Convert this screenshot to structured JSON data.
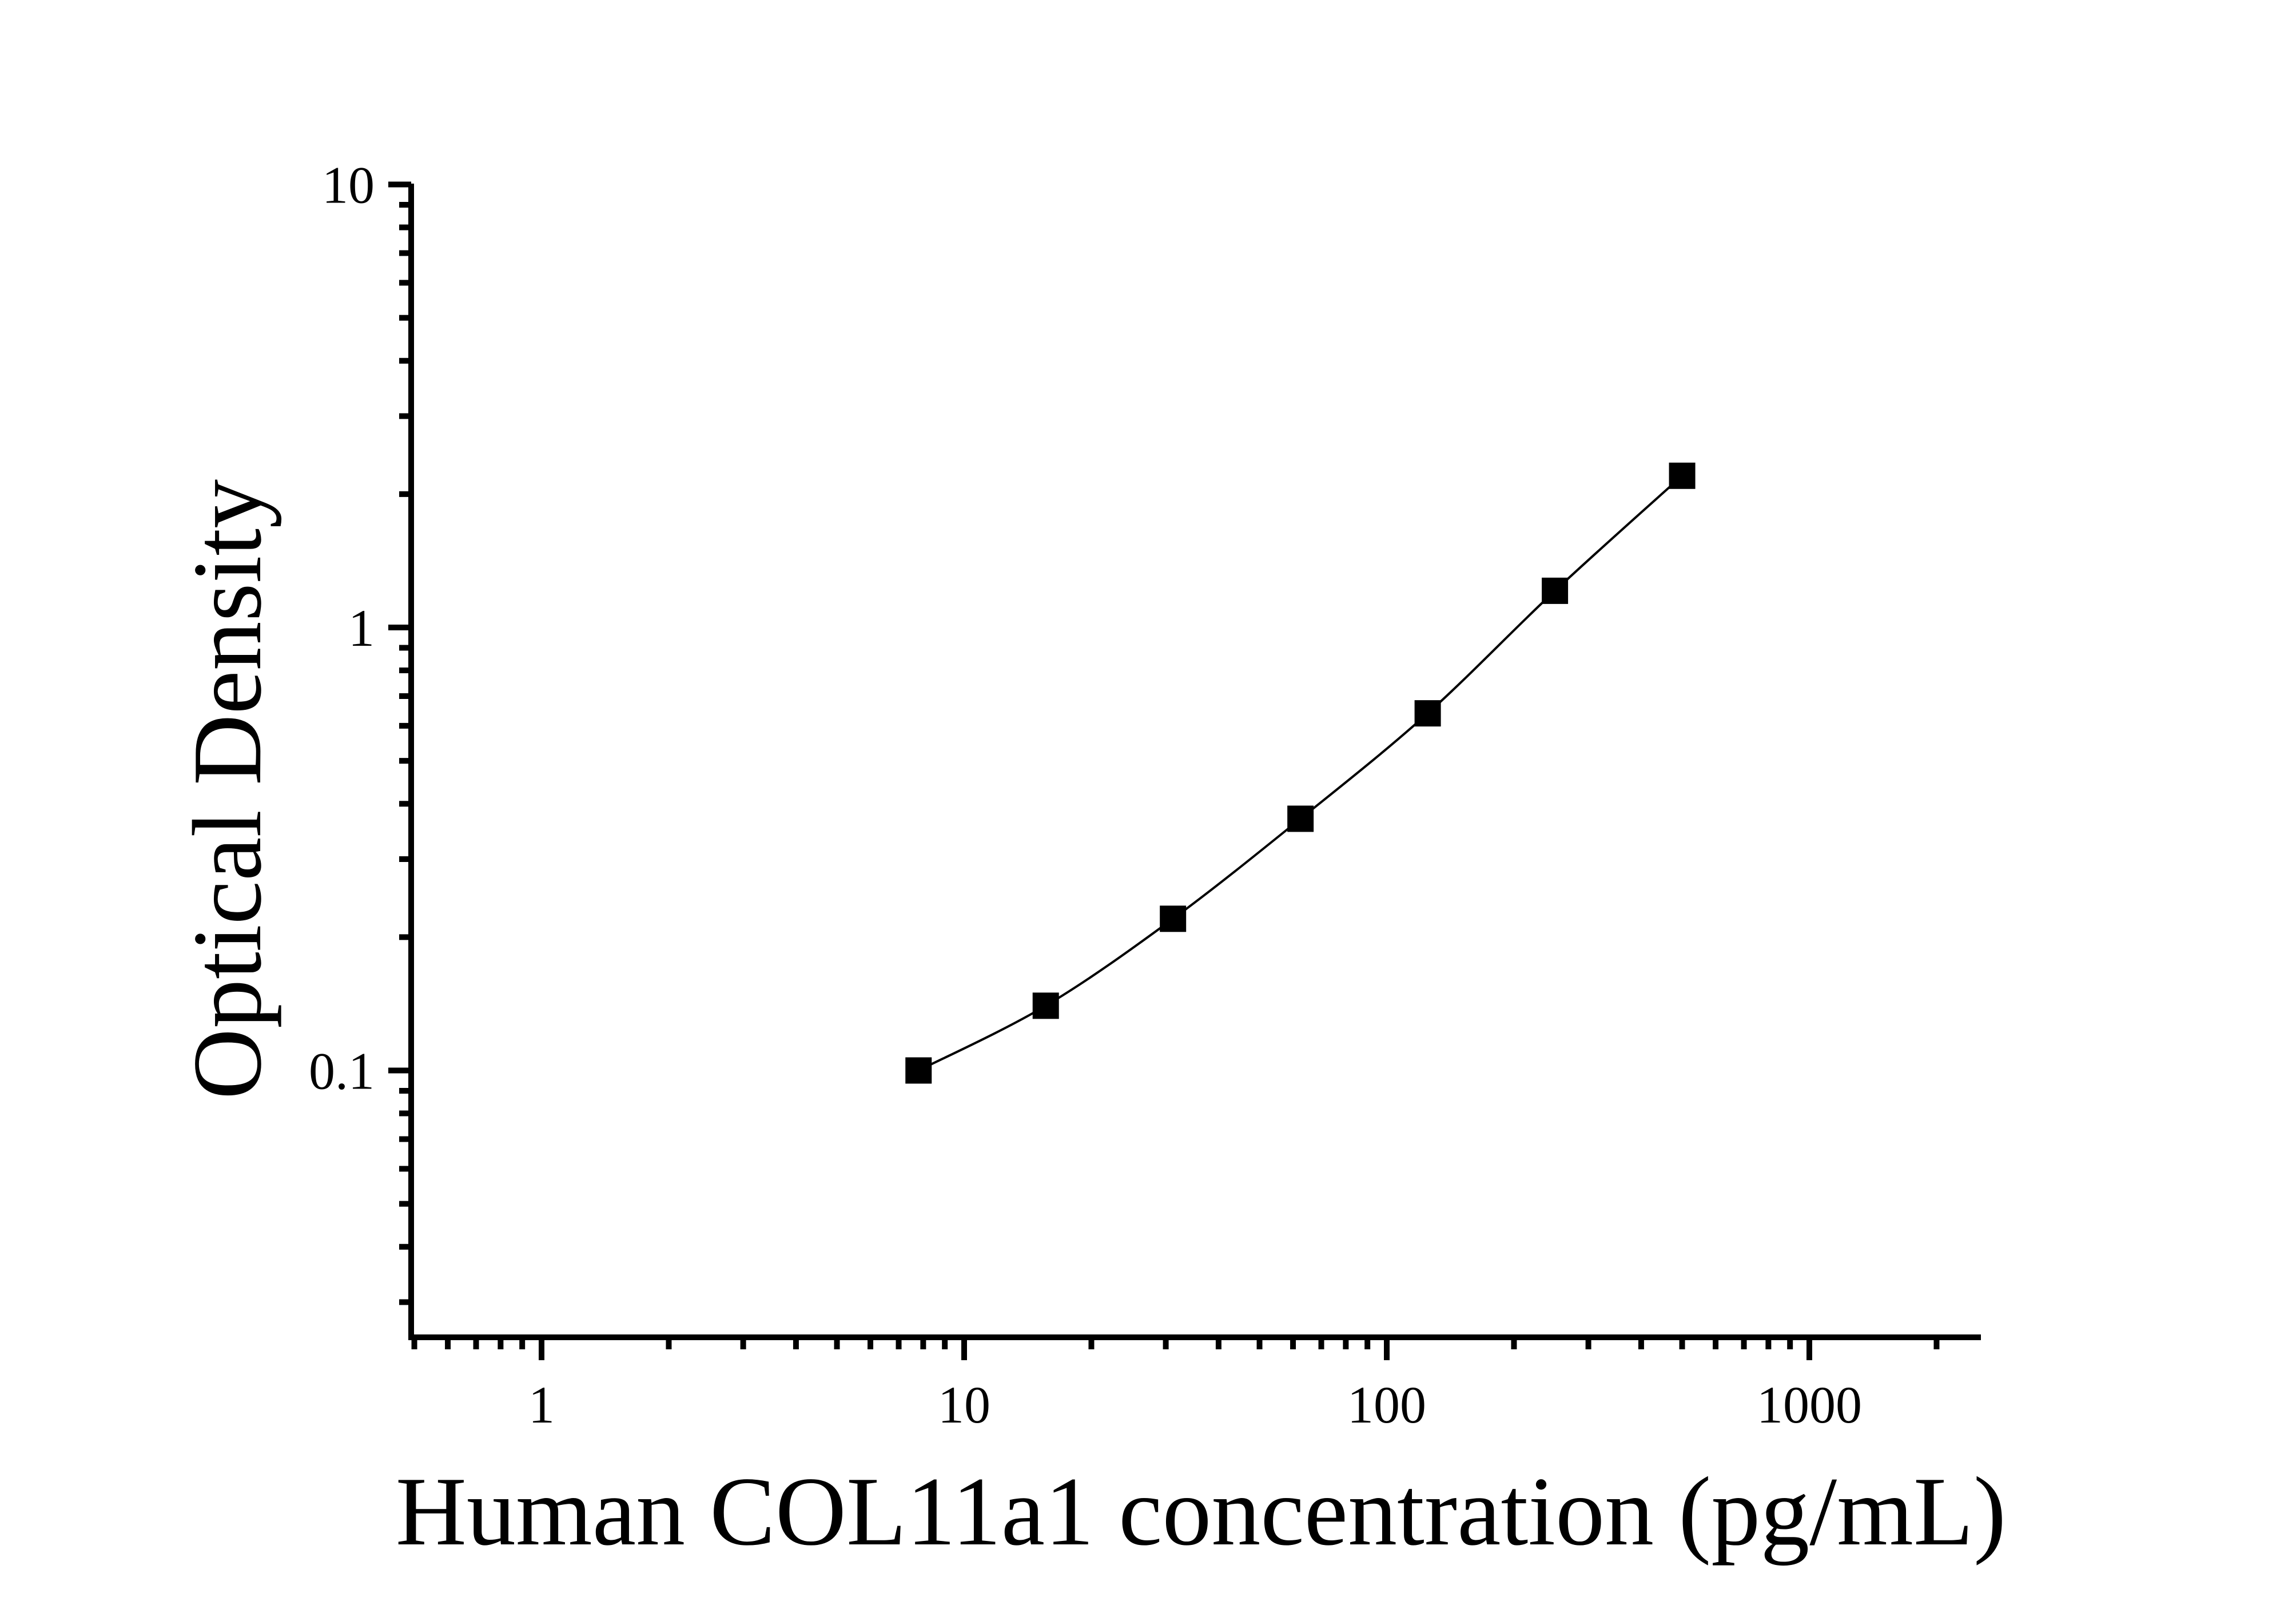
{
  "chart_data": {
    "type": "line",
    "title": "",
    "xlabel": "Human COL11a1 concentration (pg/mL)",
    "ylabel": "Optical Density",
    "x_scale": "log",
    "y_scale": "log",
    "xlim": [
      0.5,
      2500
    ],
    "ylim": [
      0.025,
      10
    ],
    "x_major_ticks": [
      1,
      10,
      100,
      1000
    ],
    "x_tick_labels": [
      "1",
      "10",
      "100",
      "1000"
    ],
    "y_major_ticks": [
      10,
      1,
      0.1
    ],
    "y_tick_labels": [
      "10",
      "1",
      "0.1"
    ],
    "x_minor_tick_range": [
      0.5,
      2000
    ],
    "y_minor_tick_range": [
      0.03,
      9
    ],
    "grid": "off",
    "legend": "none",
    "series": [
      {
        "name": "standard-curve",
        "marker": "filled-square",
        "x": [
          7.8,
          15.6,
          31.2,
          62.5,
          125,
          250,
          500
        ],
        "y": [
          0.1,
          0.14,
          0.22,
          0.37,
          0.64,
          1.21,
          2.2
        ]
      }
    ],
    "colors": {
      "background": "#ffffff",
      "axis": "#000000",
      "curve": "#000000",
      "marker": "#000000"
    }
  }
}
